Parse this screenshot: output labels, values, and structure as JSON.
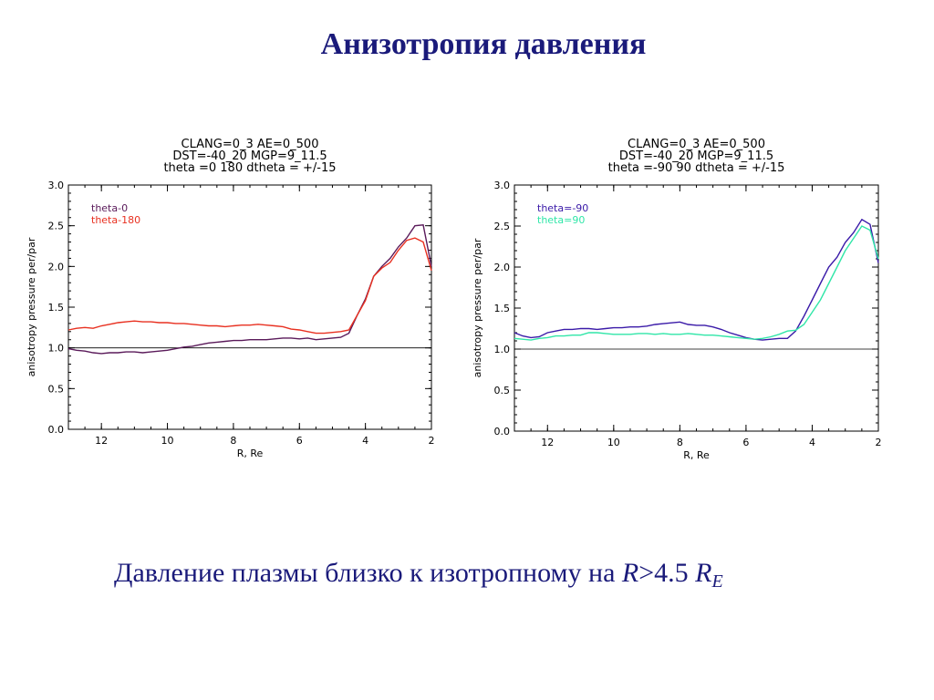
{
  "slide": {
    "title": "Анизотропия давления",
    "caption": {
      "text": "Давление плазмы близко к изотропному на ",
      "r_symbol": "R",
      "condition": ">4.5 ",
      "re_symbol": "R",
      "re_subscript": "E"
    }
  },
  "chart_data": [
    {
      "type": "line",
      "title": [
        "CLANG=0_3 AE=0_500",
        "DST=-40_20 MGP=9_11.5",
        "theta =0 180 dtheta = +/-15"
      ],
      "xlabel": "R, Re",
      "ylabel": "anisotropy pressure per/par",
      "xlim": [
        13,
        2
      ],
      "ylim": [
        0,
        3
      ],
      "xticks": [
        12,
        10,
        8,
        6,
        4,
        2
      ],
      "yticks": [
        "0.0",
        "0.5",
        "1.0",
        "1.5",
        "2.0",
        "2.5",
        "3.0"
      ],
      "reference_y": 1.0,
      "legend_position": "top-left",
      "series": [
        {
          "name": "theta-0",
          "color": "#5a1a5a",
          "x": [
            13,
            12.75,
            12.5,
            12.25,
            12,
            11.75,
            11.5,
            11.25,
            11,
            10.75,
            10.5,
            10.25,
            10,
            9.75,
            9.5,
            9.25,
            9,
            8.75,
            8.5,
            8.25,
            8,
            7.75,
            7.5,
            7.25,
            7,
            6.75,
            6.5,
            6.25,
            6,
            5.75,
            5.5,
            5.25,
            5,
            4.75,
            4.5,
            4.25,
            4,
            3.75,
            3.5,
            3.25,
            3,
            2.75,
            2.5,
            2.25,
            2
          ],
          "y": [
            0.99,
            0.97,
            0.96,
            0.94,
            0.93,
            0.94,
            0.94,
            0.95,
            0.95,
            0.94,
            0.95,
            0.96,
            0.97,
            0.99,
            1.01,
            1.02,
            1.04,
            1.06,
            1.07,
            1.08,
            1.09,
            1.09,
            1.1,
            1.1,
            1.1,
            1.11,
            1.12,
            1.12,
            1.11,
            1.12,
            1.1,
            1.11,
            1.12,
            1.13,
            1.18,
            1.4,
            1.6,
            1.88,
            2.0,
            2.1,
            2.24,
            2.35,
            2.5,
            2.51,
            2.0
          ]
        },
        {
          "name": "theta-180",
          "color": "#e83020",
          "x": [
            13,
            12.75,
            12.5,
            12.25,
            12,
            11.75,
            11.5,
            11.25,
            11,
            10.75,
            10.5,
            10.25,
            10,
            9.75,
            9.5,
            9.25,
            9,
            8.75,
            8.5,
            8.25,
            8,
            7.75,
            7.5,
            7.25,
            7,
            6.75,
            6.5,
            6.25,
            6,
            5.75,
            5.5,
            5.25,
            5,
            4.75,
            4.5,
            4.25,
            4,
            3.75,
            3.5,
            3.25,
            3,
            2.75,
            2.5,
            2.25,
            2
          ],
          "y": [
            1.22,
            1.24,
            1.25,
            1.24,
            1.27,
            1.29,
            1.31,
            1.32,
            1.33,
            1.32,
            1.32,
            1.31,
            1.31,
            1.3,
            1.3,
            1.29,
            1.28,
            1.27,
            1.27,
            1.26,
            1.27,
            1.28,
            1.28,
            1.29,
            1.28,
            1.27,
            1.26,
            1.23,
            1.22,
            1.2,
            1.18,
            1.18,
            1.19,
            1.2,
            1.22,
            1.4,
            1.58,
            1.88,
            1.98,
            2.05,
            2.2,
            2.32,
            2.35,
            2.3,
            1.95
          ]
        }
      ]
    },
    {
      "type": "line",
      "title": [
        "CLANG=0_3 AE=0_500",
        "DST=-40_20 MGP=9_11.5",
        "theta =-90 90 dtheta = +/-15"
      ],
      "xlabel": "R, Re",
      "ylabel": "anisotropy pressure per/par",
      "xlim": [
        13,
        2
      ],
      "ylim": [
        0,
        3
      ],
      "xticks": [
        12,
        10,
        8,
        6,
        4,
        2
      ],
      "yticks": [
        "0.0",
        "0.5",
        "1.0",
        "1.5",
        "2.0",
        "2.5",
        "3.0"
      ],
      "reference_y": 1.0,
      "legend_position": "top-left",
      "series": [
        {
          "name": "theta=-90",
          "color": "#3a1aa8",
          "x": [
            13,
            12.75,
            12.5,
            12.25,
            12,
            11.75,
            11.5,
            11.25,
            11,
            10.75,
            10.5,
            10.25,
            10,
            9.75,
            9.5,
            9.25,
            9,
            8.75,
            8.5,
            8.25,
            8,
            7.75,
            7.5,
            7.25,
            7,
            6.75,
            6.5,
            6.25,
            6,
            5.75,
            5.5,
            5.25,
            5,
            4.75,
            4.5,
            4.25,
            4,
            3.75,
            3.5,
            3.25,
            3,
            2.75,
            2.5,
            2.25,
            2
          ],
          "y": [
            1.2,
            1.16,
            1.14,
            1.15,
            1.2,
            1.22,
            1.24,
            1.24,
            1.25,
            1.25,
            1.24,
            1.25,
            1.26,
            1.26,
            1.27,
            1.27,
            1.28,
            1.3,
            1.31,
            1.32,
            1.33,
            1.3,
            1.29,
            1.29,
            1.27,
            1.24,
            1.2,
            1.17,
            1.14,
            1.12,
            1.11,
            1.12,
            1.13,
            1.13,
            1.22,
            1.4,
            1.6,
            1.8,
            2.0,
            2.12,
            2.3,
            2.42,
            2.58,
            2.52,
            2.05
          ]
        },
        {
          "name": "theta=90",
          "color": "#30e6a8",
          "x": [
            13,
            12.75,
            12.5,
            12.25,
            12,
            11.75,
            11.5,
            11.25,
            11,
            10.75,
            10.5,
            10.25,
            10,
            9.75,
            9.5,
            9.25,
            9,
            8.75,
            8.5,
            8.25,
            8,
            7.75,
            7.5,
            7.25,
            7,
            6.75,
            6.5,
            6.25,
            6,
            5.75,
            5.5,
            5.25,
            5,
            4.75,
            4.5,
            4.25,
            4,
            3.75,
            3.5,
            3.25,
            3,
            2.75,
            2.5,
            2.25,
            2
          ],
          "y": [
            1.13,
            1.12,
            1.11,
            1.13,
            1.14,
            1.16,
            1.16,
            1.17,
            1.17,
            1.2,
            1.2,
            1.19,
            1.18,
            1.18,
            1.18,
            1.19,
            1.19,
            1.18,
            1.19,
            1.18,
            1.18,
            1.19,
            1.18,
            1.17,
            1.17,
            1.16,
            1.15,
            1.14,
            1.13,
            1.12,
            1.13,
            1.15,
            1.18,
            1.22,
            1.23,
            1.3,
            1.45,
            1.6,
            1.8,
            2.0,
            2.2,
            2.35,
            2.5,
            2.45,
            2.1
          ]
        }
      ]
    }
  ]
}
